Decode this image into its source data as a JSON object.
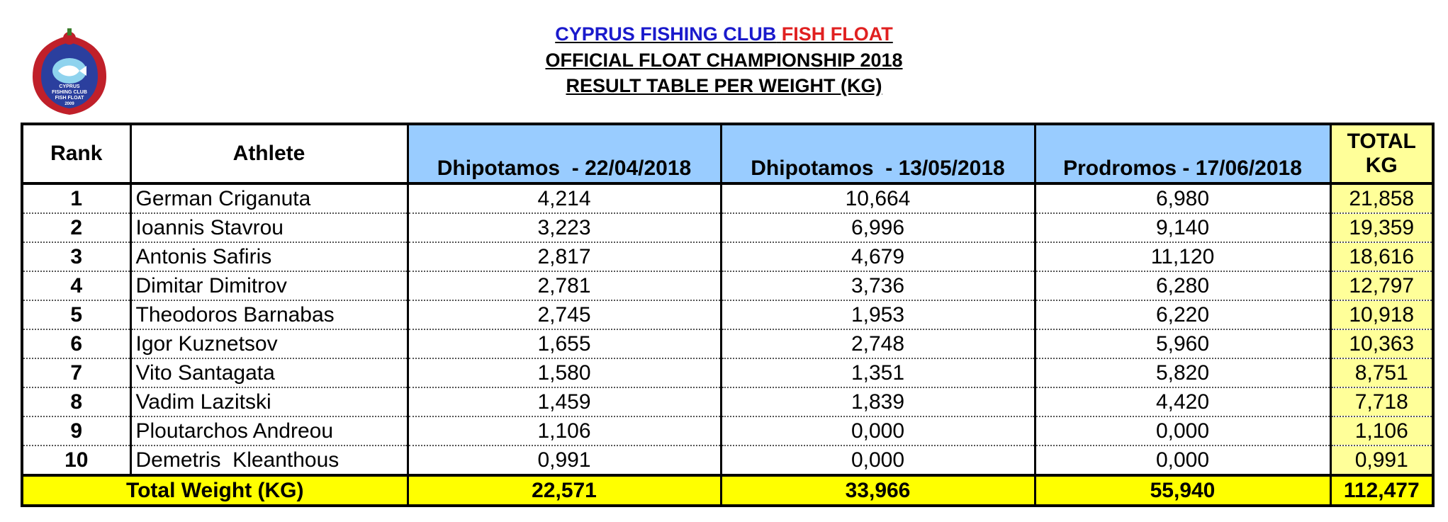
{
  "header": {
    "title_blue": "CYPRUS FISHING CLUB",
    "title_red": "FISH FLOAT",
    "subtitle": "OFFICIAL FLOAT CHAMPIONSHIP 2018",
    "subtitle2": "RESULT TABLE PER WEIGHT (KG)"
  },
  "logo": {
    "lines": [
      "CYPRUS",
      "FISHING CLUB",
      "FISH FLOAT",
      "2009"
    ]
  },
  "table": {
    "columns": [
      "Rank",
      "Athlete",
      "Dhipotamos  - 22/04/2018",
      "Dhipotamos  - 13/05/2018",
      "Prodromos - 17/06/2018",
      "TOTAL KG"
    ],
    "rows": [
      [
        "1",
        "German Criganuta",
        "4,214",
        "10,664",
        "6,980",
        "21,858"
      ],
      [
        "2",
        "Ioannis Stavrou",
        "3,223",
        "6,996",
        "9,140",
        "19,359"
      ],
      [
        "3",
        "Antonis Safiris",
        "2,817",
        "4,679",
        "11,120",
        "18,616"
      ],
      [
        "4",
        "Dimitar Dimitrov",
        "2,781",
        "3,736",
        "6,280",
        "12,797"
      ],
      [
        "5",
        "Theodoros Barnabas",
        "2,745",
        "1,953",
        "6,220",
        "10,918"
      ],
      [
        "6",
        "Igor Kuznetsov",
        "1,655",
        "2,748",
        "5,960",
        "10,363"
      ],
      [
        "7",
        "Vito Santagata",
        "1,580",
        "1,351",
        "5,820",
        "8,751"
      ],
      [
        "8",
        "Vadim Lazitski",
        "1,459",
        "1,839",
        "4,420",
        "7,718"
      ],
      [
        "9",
        "Ploutarchos Andreou",
        "1,106",
        "0,000",
        "0,000",
        "1,106"
      ],
      [
        "10",
        "Demetris  Kleanthous",
        "0,991",
        "0,000",
        "0,000",
        "0,991"
      ]
    ],
    "total": {
      "label": "Total Weight (KG)",
      "values": [
        "22,571",
        "33,966",
        "55,940",
        "112,477"
      ]
    }
  }
}
